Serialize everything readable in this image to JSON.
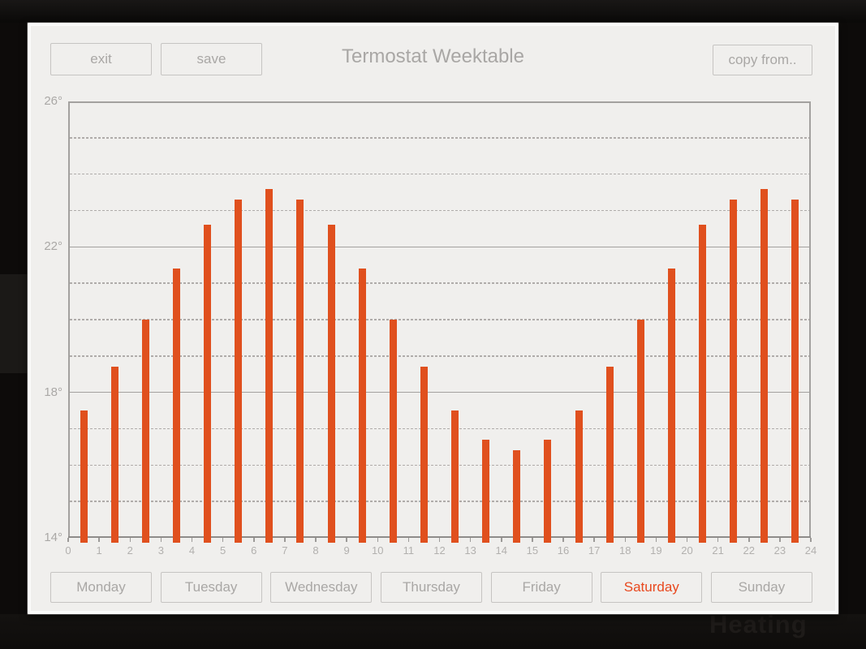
{
  "window": {
    "title": "Termostat Weektable",
    "background_faint_text": "Heating"
  },
  "toolbar": {
    "exit_label": "exit",
    "save_label": "save",
    "copy_from_label": "copy from.."
  },
  "days": {
    "items": [
      {
        "label": "Monday",
        "selected": false
      },
      {
        "label": "Tuesday",
        "selected": false
      },
      {
        "label": "Wednesday",
        "selected": false
      },
      {
        "label": "Thursday",
        "selected": false
      },
      {
        "label": "Friday",
        "selected": false
      },
      {
        "label": "Saturday",
        "selected": true
      },
      {
        "label": "Sunday",
        "selected": false
      }
    ]
  },
  "colors": {
    "bar": "#e0501e",
    "selected_day_text": "#e8481e",
    "panel_background": "#f0efed",
    "muted_text": "#a9a7a5",
    "grid_solid": "#a3a19f",
    "grid_dashed": "#aca9a7",
    "axis": "#8e8c8a"
  },
  "chart_data": {
    "type": "bar",
    "title": "",
    "xlabel": "",
    "ylabel": "",
    "xlim": [
      0,
      24
    ],
    "ylim": [
      14,
      26
    ],
    "x_tick_labels": [
      "0",
      "1",
      "2",
      "3",
      "4",
      "5",
      "6",
      "7",
      "8",
      "9",
      "10",
      "11",
      "12",
      "13",
      "14",
      "15",
      "16",
      "17",
      "18",
      "19",
      "20",
      "21",
      "22",
      "23",
      "24"
    ],
    "y_tick_labels": [
      "26°",
      "22°",
      "18°",
      "14°"
    ],
    "y_solid_lines": [
      26,
      22,
      18,
      14
    ],
    "y_dashed_lines": [
      25,
      24,
      23,
      21,
      20,
      19,
      17,
      16,
      15
    ],
    "hours": [
      0,
      1,
      2,
      3,
      4,
      5,
      6,
      7,
      8,
      9,
      10,
      11,
      12,
      13,
      14,
      15,
      16,
      17,
      18,
      19,
      20,
      21,
      22,
      23
    ],
    "values": [
      17.5,
      18.7,
      20.0,
      21.4,
      22.6,
      23.3,
      23.6,
      23.3,
      22.6,
      21.4,
      20.0,
      18.7,
      17.5,
      16.7,
      16.4,
      16.7,
      17.5,
      18.7,
      20.0,
      21.4,
      22.6,
      23.3,
      23.6,
      23.3
    ],
    "bar_unit": "°",
    "legend": null,
    "grid": "solid line every 4 degrees, dashed line every degree"
  }
}
